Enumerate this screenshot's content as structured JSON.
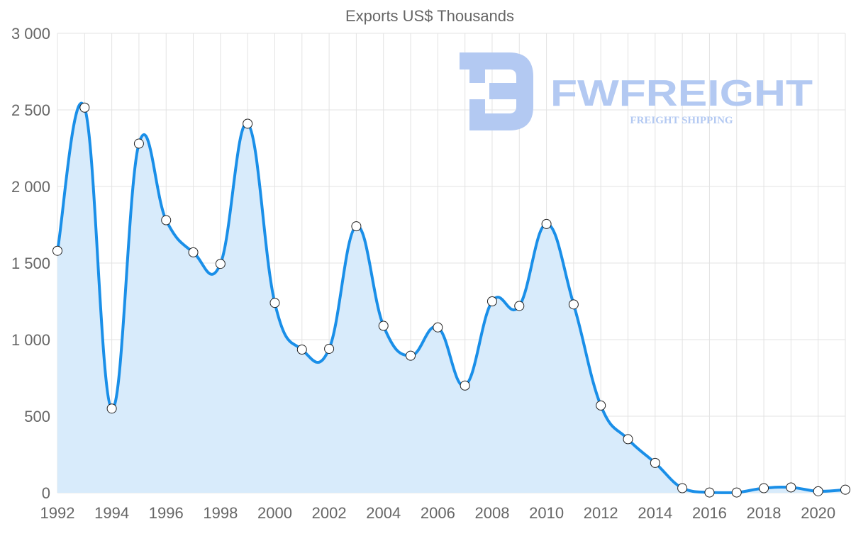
{
  "colors": {
    "line": "#1a8fe8",
    "fill": "#d8ebfb",
    "point_fill": "#ffffff",
    "point_stroke": "#222222",
    "watermark": "#b3c9f2"
  },
  "watermark": {
    "name": "FWFREIGHT",
    "tagline": "FREIGHT SHIPPING"
  },
  "chart_data": {
    "type": "area",
    "title": "Exports US$ Thousands",
    "xlabel": "",
    "ylabel": "",
    "x": [
      1992,
      1993,
      1994,
      1995,
      1996,
      1997,
      1998,
      1999,
      2000,
      2001,
      2002,
      2003,
      2004,
      2005,
      2006,
      2007,
      2008,
      2009,
      2010,
      2011,
      2012,
      2013,
      2014,
      2015,
      2016,
      2017,
      2018,
      2019,
      2020,
      2021
    ],
    "series": [
      {
        "name": "Exports US$ Thousands",
        "values": [
          1580,
          2515,
          550,
          2280,
          1780,
          1570,
          1495,
          2410,
          1240,
          935,
          940,
          1740,
          1090,
          895,
          1080,
          700,
          1250,
          1220,
          1755,
          1230,
          570,
          350,
          195,
          30,
          2,
          2,
          30,
          35,
          10,
          20
        ]
      }
    ],
    "xlim": [
      1992,
      2021
    ],
    "ylim": [
      0,
      3000
    ],
    "y_ticks": [
      "0",
      "500",
      "1 000",
      "1 500",
      "2 000",
      "2 500",
      "3 000"
    ],
    "x_ticks": [
      "1992",
      "1994",
      "1996",
      "1998",
      "2000",
      "2002",
      "2004",
      "2006",
      "2008",
      "2010",
      "2012",
      "2014",
      "2016",
      "2018",
      "2020"
    ],
    "grid": true,
    "legend": "none"
  }
}
